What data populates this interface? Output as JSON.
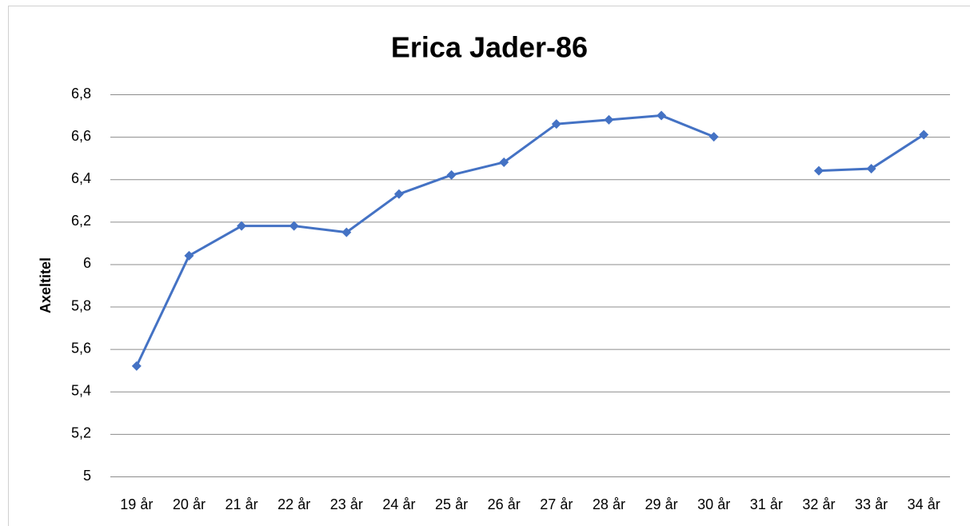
{
  "chart_data": {
    "type": "line",
    "title": "Erica Jader-86",
    "y_label": "Axeltitel",
    "categories": [
      "19 år",
      "20 år",
      "21 år",
      "22 år",
      "23 år",
      "24 år",
      "25 år",
      "26 år",
      "27 år",
      "28 år",
      "29 år",
      "30 år",
      "31 år",
      "32 år",
      "33 år",
      "34 år"
    ],
    "series": [
      {
        "color": "#4472c4",
        "values": [
          5.52,
          6.04,
          6.18,
          6.18,
          6.15,
          6.33,
          6.42,
          6.48,
          6.66,
          6.68,
          6.7,
          6.6,
          null,
          6.44,
          6.45,
          6.61
        ]
      }
    ],
    "ylim": [
      5,
      6.8
    ],
    "yticks": [
      5,
      {
        "value": 5.2,
        "label": "5,2"
      },
      {
        "value": 5.4,
        "label": "5,4"
      },
      {
        "value": 5.6,
        "label": "5,6"
      },
      {
        "value": 5.8,
        "label": "5,8"
      },
      6,
      {
        "value": 6.2,
        "label": "6,2"
      },
      {
        "value": 6.4,
        "label": "6,4"
      },
      {
        "value": 6.6,
        "label": "6,6"
      },
      {
        "value": 6.8,
        "label": "6,8"
      }
    ],
    "grid": true
  }
}
